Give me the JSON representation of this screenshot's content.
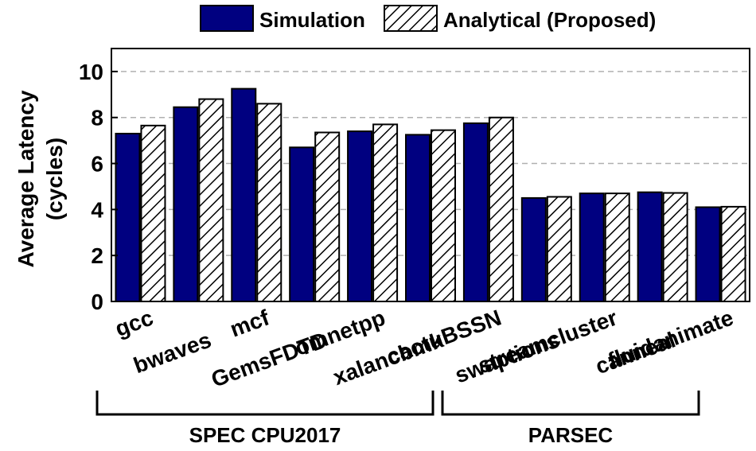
{
  "chart_data": {
    "type": "bar",
    "ylabel_lines": [
      "Average Latency",
      "(cycles)"
    ],
    "ylim": [
      0,
      11
    ],
    "yticks": [
      0,
      2,
      4,
      6,
      8,
      10
    ],
    "grid": "horizontal dashed",
    "legend_position": "top",
    "categories": [
      "gcc",
      "bwaves",
      "mcf",
      "GemsFDTD",
      "omnetpp",
      "xalancbmk",
      "cactuBSSN",
      "swaptions",
      "streamcluster",
      "canneal",
      "fluidanimate"
    ],
    "series": [
      {
        "name": "Simulation",
        "style": "solid",
        "color": "#000080",
        "values": [
          7.3,
          8.45,
          9.25,
          6.7,
          7.4,
          7.25,
          7.75,
          4.5,
          4.7,
          4.75,
          4.1
        ]
      },
      {
        "name": "Analytical (Proposed)",
        "style": "hatched",
        "color": "#ffffff",
        "values": [
          7.65,
          8.8,
          8.6,
          7.35,
          7.7,
          7.45,
          8.0,
          4.55,
          4.7,
          4.72,
          4.12
        ]
      }
    ],
    "groups": [
      {
        "label": "SPEC CPU2017",
        "categories": [
          "gcc",
          "bwaves",
          "mcf",
          "GemsFDTD",
          "omnetpp",
          "xalancbmk",
          "cactuBSSN"
        ]
      },
      {
        "label": "PARSEC",
        "categories": [
          "swaptions",
          "streamcluster",
          "canneal",
          "fluidanimate"
        ]
      }
    ]
  }
}
